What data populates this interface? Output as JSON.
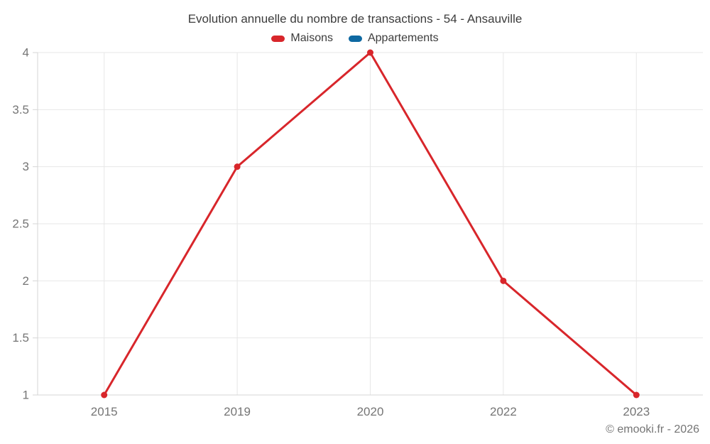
{
  "chart": {
    "title": "Evolution annuelle du nombre de transactions - 54 - Ansauville",
    "copyright": "© emooki.fr - 2026"
  },
  "chart_data": {
    "type": "line",
    "title": "Evolution annuelle du nombre de transactions - 54 - Ansauville",
    "categories": [
      "2015",
      "2019",
      "2020",
      "2022",
      "2023"
    ],
    "series": [
      {
        "name": "Maisons",
        "color": "#d8262b",
        "values": [
          1,
          3,
          4,
          2,
          1
        ]
      },
      {
        "name": "Appartements",
        "color": "#0e69a2",
        "values": []
      }
    ],
    "xlabel": "",
    "ylabel": "",
    "ylim": [
      1,
      4
    ],
    "yticks": [
      1,
      1.5,
      2,
      2.5,
      3,
      3.5,
      4
    ],
    "grid": true,
    "legend_position": "top",
    "line_width": 3,
    "marker_radius": 4.5
  },
  "axes_style": {
    "grid_color": "#e7e7e7",
    "axis_color": "#d6d6d6",
    "label_color": "#757575",
    "tick_font_size": 16
  }
}
